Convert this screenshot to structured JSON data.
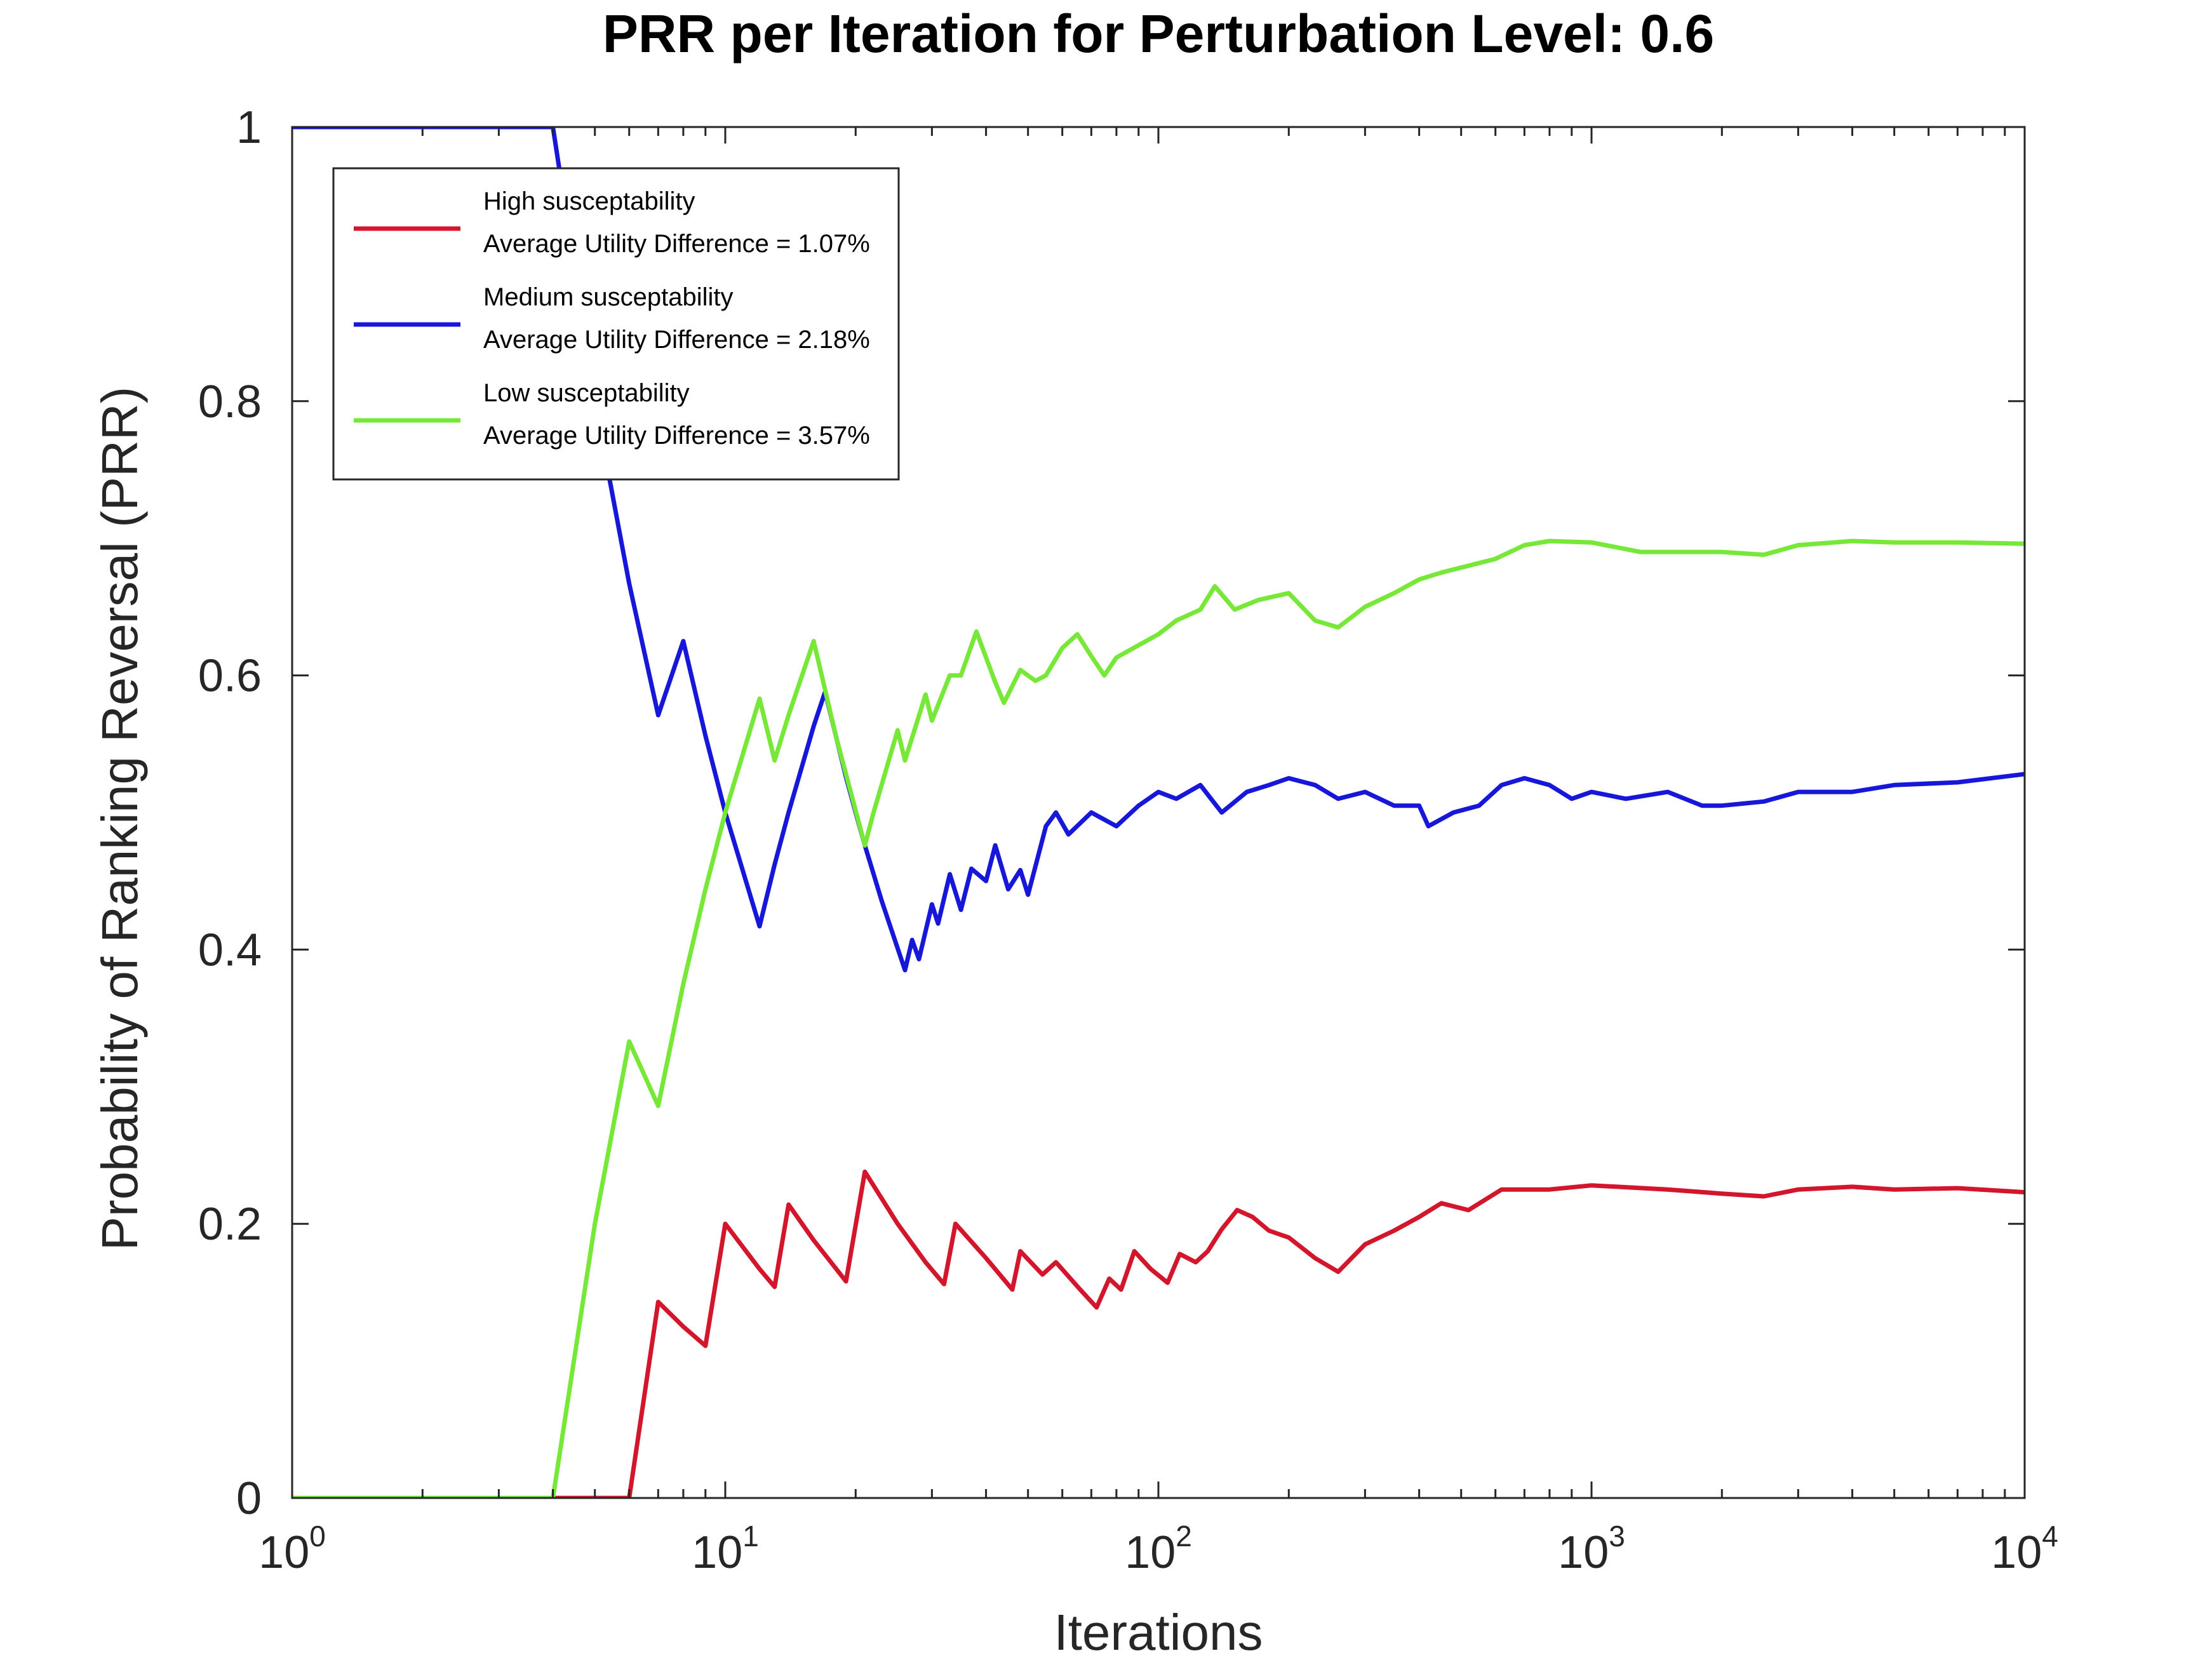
{
  "chart_data": {
    "type": "line",
    "title": "PRR per Iteration for Perturbation Level: 0.6",
    "xlabel": "Iterations",
    "ylabel": "Probability of Ranking Reversal (PRR)",
    "xscale": "log",
    "xlim": [
      1,
      10000
    ],
    "ylim": [
      0,
      1
    ],
    "xticks": [
      {
        "value": 1,
        "base": "10",
        "exp": "0"
      },
      {
        "value": 10,
        "base": "10",
        "exp": "1"
      },
      {
        "value": 100,
        "base": "10",
        "exp": "2"
      },
      {
        "value": 1000,
        "base": "10",
        "exp": "3"
      },
      {
        "value": 10000,
        "base": "10",
        "exp": "4"
      }
    ],
    "yticks": [
      {
        "value": 0,
        "label": "0"
      },
      {
        "value": 0.2,
        "label": "0.2"
      },
      {
        "value": 0.4,
        "label": "0.4"
      },
      {
        "value": 0.6,
        "label": "0.6"
      },
      {
        "value": 0.8,
        "label": "0.8"
      },
      {
        "value": 1,
        "label": "1"
      }
    ],
    "grid": false,
    "legend_position": "top-left",
    "series": [
      {
        "name": "High susceptability",
        "subtitle": "Average Utility Difference = 1.07%",
        "color": "#d3162b",
        "points": [
          [
            1,
            0
          ],
          [
            4,
            0
          ],
          [
            6,
            0
          ],
          [
            7,
            0.143
          ],
          [
            8,
            0.125
          ],
          [
            9,
            0.111
          ],
          [
            10,
            0.2
          ],
          [
            12,
            0.167
          ],
          [
            13,
            0.154
          ],
          [
            14,
            0.214
          ],
          [
            16,
            0.188
          ],
          [
            19,
            0.158
          ],
          [
            21,
            0.238
          ],
          [
            25,
            0.2
          ],
          [
            29,
            0.172
          ],
          [
            32,
            0.156
          ],
          [
            34,
            0.2
          ],
          [
            40,
            0.175
          ],
          [
            46,
            0.152
          ],
          [
            48,
            0.18
          ],
          [
            54,
            0.163
          ],
          [
            58,
            0.172
          ],
          [
            66,
            0.152
          ],
          [
            72,
            0.139
          ],
          [
            77,
            0.16
          ],
          [
            82,
            0.152
          ],
          [
            88,
            0.18
          ],
          [
            96,
            0.167
          ],
          [
            105,
            0.157
          ],
          [
            112,
            0.178
          ],
          [
            122,
            0.172
          ],
          [
            130,
            0.18
          ],
          [
            140,
            0.196
          ],
          [
            152,
            0.21
          ],
          [
            165,
            0.205
          ],
          [
            180,
            0.195
          ],
          [
            200,
            0.19
          ],
          [
            230,
            0.175
          ],
          [
            260,
            0.165
          ],
          [
            300,
            0.185
          ],
          [
            350,
            0.195
          ],
          [
            400,
            0.205
          ],
          [
            450,
            0.215
          ],
          [
            520,
            0.21
          ],
          [
            620,
            0.225
          ],
          [
            800,
            0.225
          ],
          [
            1000,
            0.228
          ],
          [
            1500,
            0.225
          ],
          [
            2000,
            0.222
          ],
          [
            2500,
            0.22
          ],
          [
            3000,
            0.225
          ],
          [
            4000,
            0.227
          ],
          [
            5000,
            0.225
          ],
          [
            7000,
            0.226
          ],
          [
            10000,
            0.223
          ]
        ]
      },
      {
        "name": "Medium susceptability",
        "subtitle": "Average Utility Difference = 2.18%",
        "color": "#1717d9",
        "points": [
          [
            1,
            1
          ],
          [
            4,
            1
          ],
          [
            5,
            0.8
          ],
          [
            6,
            0.667
          ],
          [
            7,
            0.571
          ],
          [
            8,
            0.625
          ],
          [
            9,
            0.556
          ],
          [
            10,
            0.5
          ],
          [
            12,
            0.417
          ],
          [
            13,
            0.462
          ],
          [
            14,
            0.5
          ],
          [
            16,
            0.563
          ],
          [
            17,
            0.588
          ],
          [
            18,
            0.556
          ],
          [
            19,
            0.526
          ],
          [
            20,
            0.5
          ],
          [
            21,
            0.476
          ],
          [
            23,
            0.435
          ],
          [
            26,
            0.385
          ],
          [
            27,
            0.407
          ],
          [
            28,
            0.393
          ],
          [
            30,
            0.433
          ],
          [
            31,
            0.419
          ],
          [
            33,
            0.455
          ],
          [
            35,
            0.429
          ],
          [
            37,
            0.459
          ],
          [
            40,
            0.45
          ],
          [
            42,
            0.476
          ],
          [
            45,
            0.444
          ],
          [
            48,
            0.458
          ],
          [
            50,
            0.44
          ],
          [
            55,
            0.49
          ],
          [
            58,
            0.5
          ],
          [
            62,
            0.484
          ],
          [
            70,
            0.5
          ],
          [
            80,
            0.49
          ],
          [
            90,
            0.505
          ],
          [
            100,
            0.515
          ],
          [
            110,
            0.51
          ],
          [
            125,
            0.52
          ],
          [
            140,
            0.5
          ],
          [
            160,
            0.515
          ],
          [
            180,
            0.52
          ],
          [
            200,
            0.525
          ],
          [
            230,
            0.52
          ],
          [
            260,
            0.51
          ],
          [
            300,
            0.515
          ],
          [
            350,
            0.505
          ],
          [
            400,
            0.505
          ],
          [
            420,
            0.49
          ],
          [
            480,
            0.5
          ],
          [
            550,
            0.505
          ],
          [
            620,
            0.52
          ],
          [
            700,
            0.525
          ],
          [
            800,
            0.52
          ],
          [
            900,
            0.51
          ],
          [
            1000,
            0.515
          ],
          [
            1200,
            0.51
          ],
          [
            1500,
            0.515
          ],
          [
            1800,
            0.505
          ],
          [
            2000,
            0.505
          ],
          [
            2500,
            0.508
          ],
          [
            3000,
            0.515
          ],
          [
            4000,
            0.515
          ],
          [
            5000,
            0.52
          ],
          [
            7000,
            0.522
          ],
          [
            10000,
            0.528
          ]
        ]
      },
      {
        "name": "Low susceptability",
        "subtitle": "Average Utility Difference = 3.57%",
        "color": "#77e837",
        "points": [
          [
            1,
            0
          ],
          [
            4,
            0
          ],
          [
            5,
            0.2
          ],
          [
            6,
            0.333
          ],
          [
            7,
            0.286
          ],
          [
            8,
            0.375
          ],
          [
            9,
            0.444
          ],
          [
            10,
            0.5
          ],
          [
            12,
            0.583
          ],
          [
            13,
            0.538
          ],
          [
            14,
            0.571
          ],
          [
            16,
            0.625
          ],
          [
            18,
            0.556
          ],
          [
            21,
            0.476
          ],
          [
            22,
            0.5
          ],
          [
            25,
            0.56
          ],
          [
            26,
            0.538
          ],
          [
            29,
            0.586
          ],
          [
            30,
            0.567
          ],
          [
            33,
            0.6
          ],
          [
            35,
            0.6
          ],
          [
            38,
            0.632
          ],
          [
            42,
            0.595
          ],
          [
            44,
            0.58
          ],
          [
            48,
            0.604
          ],
          [
            52,
            0.596
          ],
          [
            55,
            0.6
          ],
          [
            60,
            0.62
          ],
          [
            65,
            0.63
          ],
          [
            70,
            0.614
          ],
          [
            75,
            0.6
          ],
          [
            80,
            0.613
          ],
          [
            90,
            0.622
          ],
          [
            100,
            0.63
          ],
          [
            110,
            0.64
          ],
          [
            125,
            0.648
          ],
          [
            135,
            0.665
          ],
          [
            150,
            0.648
          ],
          [
            170,
            0.655
          ],
          [
            200,
            0.66
          ],
          [
            230,
            0.64
          ],
          [
            260,
            0.635
          ],
          [
            300,
            0.65
          ],
          [
            350,
            0.66
          ],
          [
            400,
            0.67
          ],
          [
            450,
            0.675
          ],
          [
            520,
            0.68
          ],
          [
            600,
            0.685
          ],
          [
            700,
            0.695
          ],
          [
            800,
            0.698
          ],
          [
            1000,
            0.697
          ],
          [
            1300,
            0.69
          ],
          [
            1600,
            0.69
          ],
          [
            2000,
            0.69
          ],
          [
            2500,
            0.688
          ],
          [
            3000,
            0.695
          ],
          [
            4000,
            0.698
          ],
          [
            5000,
            0.697
          ],
          [
            7000,
            0.697
          ],
          [
            10000,
            0.696
          ]
        ]
      }
    ]
  }
}
